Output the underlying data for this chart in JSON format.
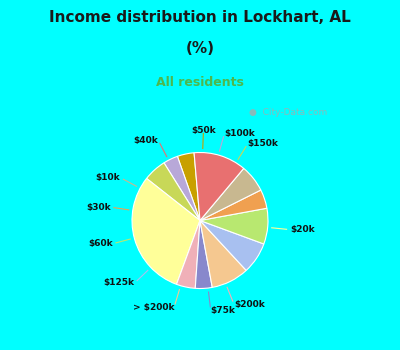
{
  "title_line1": "Income distribution in Lockhart, AL",
  "title_line2": "(%)",
  "subtitle": "All residents",
  "title_color": "#1a1a1a",
  "subtitle_color": "#4db84d",
  "bg_cyan": "#00ffff",
  "chart_bg_top": "#d0ede0",
  "chart_bg_bottom": "#e8f5ef",
  "watermark": "City-Data.com",
  "labels": [
    "$50k",
    "$100k",
    "$150k",
    "$20k",
    "$200k",
    "$75k",
    "> $200k",
    "$125k",
    "$60k",
    "$30k",
    "$10k",
    "$40k"
  ],
  "values": [
    4.0,
    3.5,
    5.5,
    30.0,
    4.5,
    4.0,
    9.0,
    7.5,
    8.5,
    4.5,
    6.5,
    12.5
  ],
  "colors": [
    "#c8a000",
    "#b8a8d8",
    "#c8d858",
    "#ffff99",
    "#f0b0b8",
    "#8888cc",
    "#f5c890",
    "#a8c0f0",
    "#b8e870",
    "#f0a050",
    "#c8b890",
    "#e87070"
  ],
  "startangle": 95,
  "figsize": [
    4.0,
    3.5
  ],
  "dpi": 100
}
